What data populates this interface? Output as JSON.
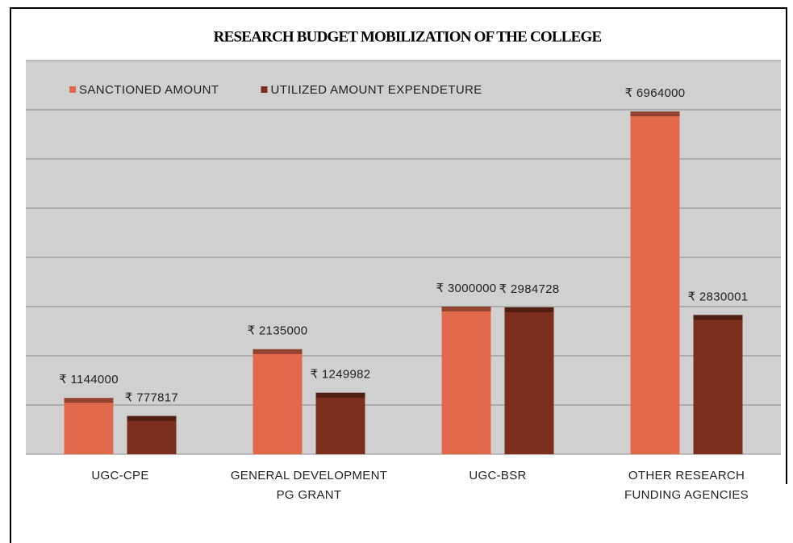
{
  "chart_data": {
    "type": "bar",
    "title": "RESEARCH BUDGET MOBILIZATION OF THE COLLEGE",
    "categories": [
      "UGC-CPE",
      "GENERAL DEVELOPMENT PG GRANT",
      "UGC-BSR",
      "OTHER RESEARCH FUNDING AGENCIES"
    ],
    "series": [
      {
        "name": "SANCTIONED AMOUNT",
        "color": "#e2694b",
        "values": [
          1144000,
          2135000,
          3000000,
          6964000
        ],
        "value_labels": [
          "₹ 1144000",
          "₹ 2135000",
          "₹ 3000000",
          "₹ 6964000"
        ]
      },
      {
        "name": "UTILIZED AMOUNT EXPENDETURE",
        "color": "#7b2f1c",
        "values": [
          777817,
          1249982,
          2984728,
          2830001
        ],
        "value_labels": [
          "₹ 777817",
          "₹ 1249982",
          "₹ 2984728",
          "₹ 2830001"
        ]
      }
    ],
    "ylim": [
      0,
      8000000
    ],
    "yticks": [
      0,
      1000000,
      2000000,
      3000000,
      4000000,
      5000000,
      6000000,
      7000000,
      8000000
    ],
    "grid": true,
    "legend": "top-left"
  }
}
